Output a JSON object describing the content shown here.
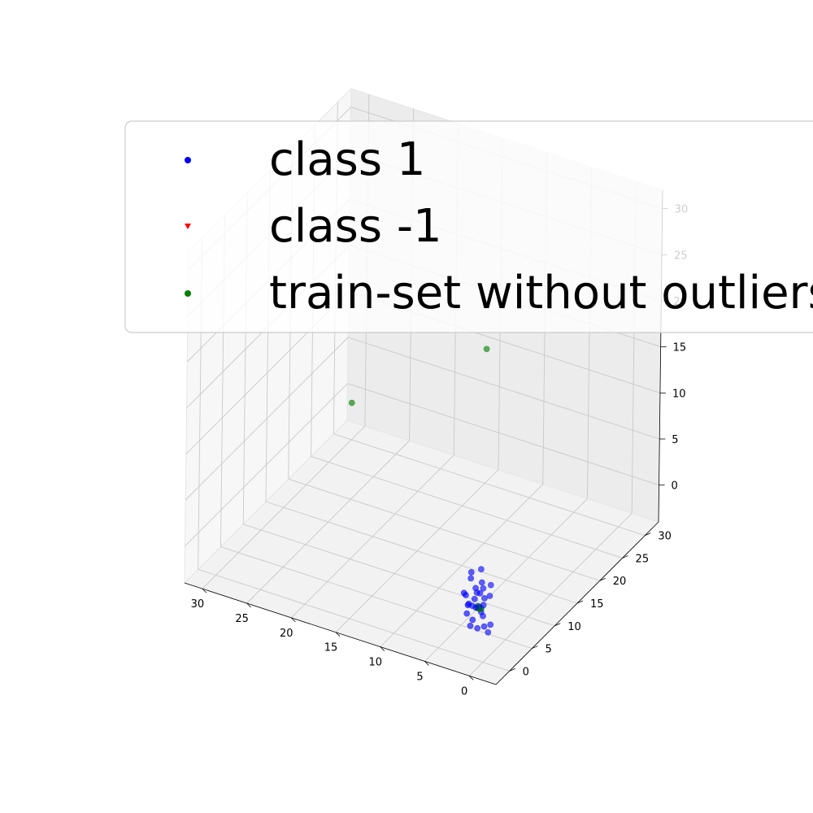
{
  "chart_data": {
    "type": "scatter",
    "projection": "3d",
    "title": "",
    "xlabel": "",
    "ylabel": "",
    "zlabel": "",
    "xlim": [
      -3,
      32
    ],
    "ylim": [
      -3,
      33
    ],
    "zlim": [
      -4,
      32
    ],
    "xticks": [
      0,
      5,
      10,
      15,
      20,
      25,
      30
    ],
    "yticks": [
      0,
      5,
      10,
      15,
      20,
      25,
      30
    ],
    "zticks": [
      0,
      5,
      10,
      15,
      20,
      25,
      30
    ],
    "grid": true,
    "legend": {
      "placement": "top",
      "entries": [
        {
          "label": "class 1",
          "marker": "circle",
          "color": "#0000ff"
        },
        {
          "label": "class -1",
          "marker": "triangle-down",
          "color": "#ff0000"
        },
        {
          "label": "train-set without outliers",
          "marker": "circle",
          "color": "#008000"
        }
      ]
    },
    "series": [
      {
        "name": "class 1",
        "color": "#0000ff",
        "marker": "circle",
        "points": [
          [
            0.2,
            0.3,
            0.8
          ],
          [
            0.8,
            0.6,
            1.5
          ],
          [
            1.3,
            0.2,
            0.1
          ],
          [
            0.5,
            1.2,
            2.2
          ],
          [
            1.5,
            1.0,
            1.9
          ],
          [
            2.1,
            0.7,
            1.2
          ],
          [
            0.3,
            0.8,
            -0.6
          ],
          [
            1.0,
            1.5,
            0.4
          ],
          [
            1.8,
            1.8,
            2.6
          ],
          [
            0.6,
            0.4,
            3.1
          ],
          [
            2.4,
            1.1,
            0.0
          ],
          [
            1.2,
            2.0,
            3.3
          ],
          [
            2.0,
            2.5,
            1.7
          ],
          [
            0.9,
            1.7,
            2.9
          ],
          [
            1.6,
            0.3,
            -0.7
          ],
          [
            2.6,
            1.9,
            0.6
          ],
          [
            0.4,
            2.2,
            2.0
          ],
          [
            1.9,
            1.3,
            0.9
          ],
          [
            -0.7,
            0.2,
            0.2
          ],
          [
            1.1,
            0.9,
            -1.1
          ],
          [
            2.8,
            2.7,
            2.9
          ],
          [
            0.7,
            1.4,
            1.3
          ],
          [
            2.2,
            0.4,
            2.4
          ],
          [
            -0.3,
            0.5,
            -0.9
          ],
          [
            1.4,
            2.3,
            0.3
          ],
          [
            3.0,
            1.6,
            1.8
          ],
          [
            0.0,
            1.6,
            3.6
          ],
          [
            1.7,
            2.8,
            4.2
          ],
          [
            2.5,
            2.2,
            3.9
          ],
          [
            0.9,
            0.1,
            1.6
          ]
        ]
      },
      {
        "name": "class -1",
        "color": "#ff0000",
        "marker": "triangle-down",
        "points": []
      },
      {
        "name": "train-set without outliers",
        "color": "#008000",
        "marker": "circle",
        "points": [
          [
            1.0,
            1.0,
            1.0
          ],
          [
            1.2,
            1.1,
            1.2
          ],
          [
            0.9,
            1.2,
            0.9
          ],
          [
            1.1,
            0.9,
            1.1
          ],
          [
            30.0,
            30.0,
            0.0
          ],
          [
            0.0,
            0.0,
            30.0
          ]
        ]
      }
    ]
  }
}
